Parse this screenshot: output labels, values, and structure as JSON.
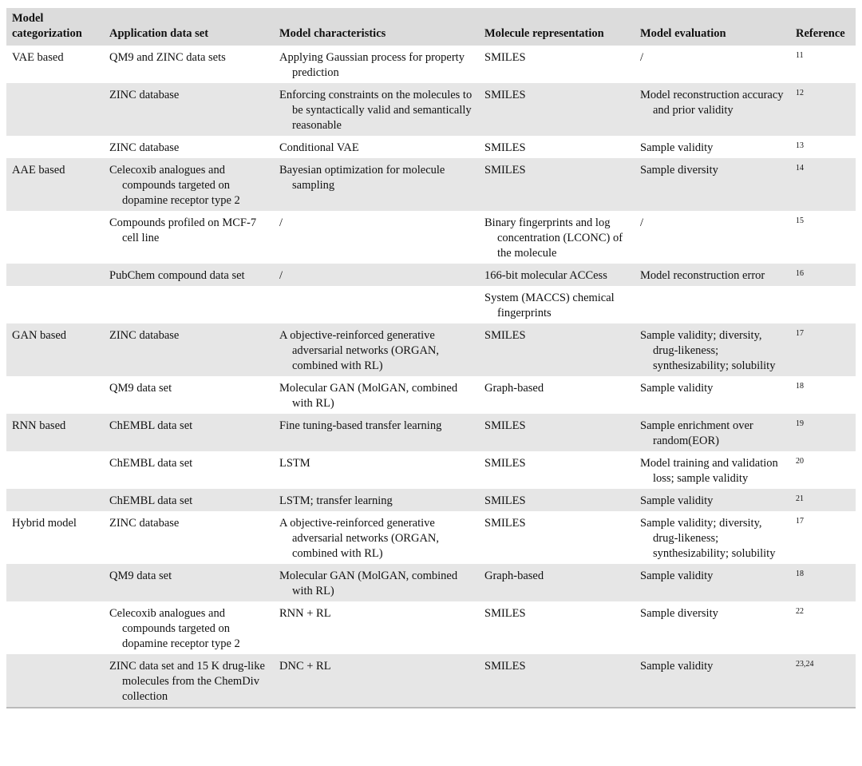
{
  "table": {
    "columns": [
      "Model categorization",
      "Application data set",
      "Model characteristics",
      "Molecule representation",
      "Model evaluation",
      "Reference"
    ],
    "rows": [
      [
        "VAE based",
        "QM9 and ZINC data sets",
        "Applying Gaussian process for property prediction",
        "SMILES",
        "/",
        "11"
      ],
      [
        null,
        "ZINC database",
        "Enforcing constraints on the molecules to be syntactically valid and semantically reasonable",
        "SMILES",
        "Model reconstruction accuracy and prior validity",
        "12"
      ],
      [
        null,
        "ZINC database",
        "Conditional VAE",
        "SMILES",
        "Sample validity",
        "13"
      ],
      [
        "AAE based",
        "Celecoxib analogues and compounds targeted on dopamine receptor type 2",
        "Bayesian optimization for molecule sampling",
        "SMILES",
        "Sample diversity",
        "14"
      ],
      [
        null,
        "Compounds profiled on MCF-7 cell line",
        "/",
        "Binary fingerprints and log concentration (LCONC) of the molecule",
        "/",
        "15"
      ],
      [
        null,
        "PubChem compound data set",
        "/",
        "166-bit molecular ACCess",
        "Model reconstruction error",
        "16"
      ],
      [
        null,
        null,
        null,
        "System (MACCS) chemical fingerprints",
        null,
        null
      ],
      [
        "GAN based",
        "ZINC database",
        "A objective-reinforced generative adversarial networks (ORGAN, combined with RL)",
        "SMILES",
        "Sample validity; diversity, drug-likeness; synthesizability; solubility",
        "17"
      ],
      [
        null,
        "QM9 data set",
        "Molecular GAN (MolGAN, combined with RL)",
        "Graph-based",
        "Sample validity",
        "18"
      ],
      [
        "RNN based",
        "ChEMBL data set",
        "Fine tuning-based transfer learning",
        "SMILES",
        "Sample enrichment over random(EOR)",
        "19"
      ],
      [
        null,
        "ChEMBL data set",
        "LSTM",
        "SMILES",
        "Model training and validation loss; sample validity",
        "20"
      ],
      [
        null,
        "ChEMBL data set",
        "LSTM; transfer learning",
        "SMILES",
        "Sample validity",
        "21"
      ],
      [
        "Hybrid model",
        "ZINC database",
        "A objective-reinforced generative adversarial networks (ORGAN, combined with RL)",
        "SMILES",
        "Sample validity; diversity, drug-likeness; synthesizability; solubility",
        "17"
      ],
      [
        null,
        "QM9 data set",
        "Molecular GAN (MolGAN, combined with RL)",
        "Graph-based",
        "Sample validity",
        "18"
      ],
      [
        null,
        "Celecoxib analogues and compounds targeted on dopamine receptor type 2",
        "RNN + RL",
        "SMILES",
        "Sample diversity",
        "22"
      ],
      [
        null,
        "ZINC data set and 15 K drug-like molecules from the ChemDiv collection",
        "DNC + RL",
        "SMILES",
        "Sample validity",
        "23,24"
      ]
    ]
  }
}
